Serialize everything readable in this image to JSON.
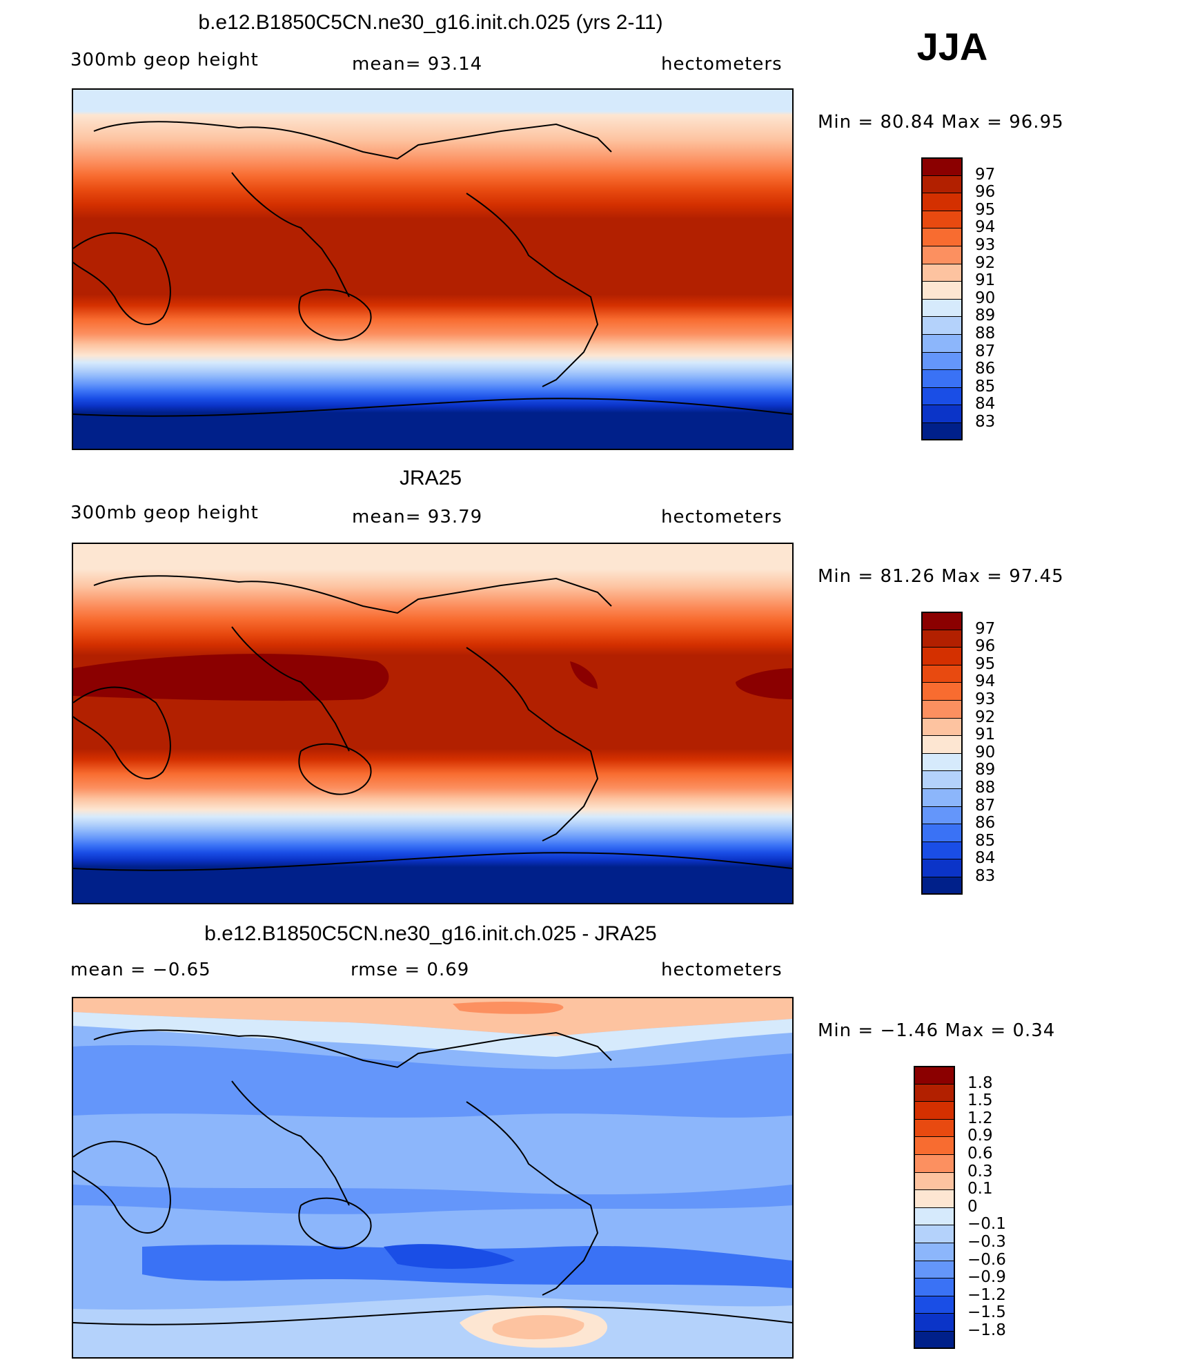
{
  "season_label": "JJA",
  "panels": [
    {
      "id": "model",
      "title": "b.e12.B1850C5CN.ne30_g16.init.ch.025 (yrs 2-11)",
      "left_text": "300mb  geop  height",
      "center_text": "mean=   93.14",
      "right_text": "hectometers",
      "min_text": "Min  =    80.84",
      "max_text": "Max  =    96.95",
      "min_value": 80.84,
      "max_value": 96.95,
      "mean_value": 93.14,
      "legend_labels": [
        "97",
        "96",
        "95",
        "94",
        "93",
        "92",
        "91",
        "90",
        "89",
        "88",
        "87",
        "86",
        "85",
        "84",
        "83"
      ]
    },
    {
      "id": "obs",
      "title": "JRA25",
      "left_text": "300mb  geop  height",
      "center_text": "mean=   93.79",
      "right_text": "hectometers",
      "min_text": "Min  =    81.26",
      "max_text": "Max  =    97.45",
      "min_value": 81.26,
      "max_value": 97.45,
      "mean_value": 93.79,
      "legend_labels": [
        "97",
        "96",
        "95",
        "94",
        "93",
        "92",
        "91",
        "90",
        "89",
        "88",
        "87",
        "86",
        "85",
        "84",
        "83"
      ]
    },
    {
      "id": "diff",
      "title": "b.e12.B1850C5CN.ne30_g16.init.ch.025 - JRA25",
      "left_text": "mean  =    −0.65",
      "center_text": "rmse  =     0.69",
      "right_text": "hectometers",
      "min_text": "Min  =   −1.46",
      "max_text": "Max  =     0.34",
      "min_value": -1.46,
      "max_value": 0.34,
      "mean_value": -0.65,
      "rmse_value": 0.69,
      "legend_labels": [
        "1.8",
        "1.5",
        "1.2",
        "0.9",
        "0.6",
        "0.3",
        "0.1",
        "0",
        "−0.1",
        "−0.3",
        "−0.6",
        "−0.9",
        "−1.2",
        "−1.5",
        "−1.8"
      ]
    }
  ],
  "colors": {
    "palette_warm_to_cold": [
      "#8b0000",
      "#b22000",
      "#d43000",
      "#e84a10",
      "#f86c30",
      "#fc9060",
      "#fdc3a0",
      "#fde6d2",
      "#d6eafc",
      "#b4d2fb",
      "#8cb6fb",
      "#6496fa",
      "#3a72f5",
      "#1a4ee6",
      "#0b34c8",
      "#00208a"
    ],
    "land_outline": "#000000"
  }
}
